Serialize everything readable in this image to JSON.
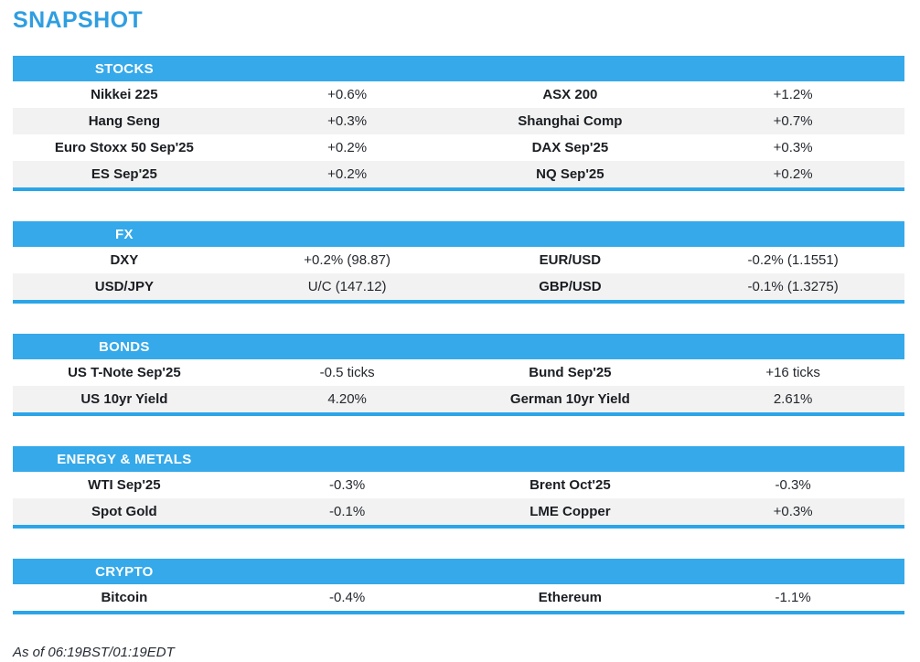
{
  "title": "SNAPSHOT",
  "footer": "As of 06:19BST/01:19EDT",
  "colors": {
    "accent_blue_title": "#2f9ee1",
    "header_bar_blue": "#35a9ea",
    "section_border_blue": "#2ba5e8",
    "row_alt_gray": "#f2f2f2",
    "text_dark": "#1d2126"
  },
  "sections": [
    {
      "label": "STOCKS",
      "rows": [
        {
          "name1": "Nikkei 225",
          "value1": "+0.6%",
          "name2": "ASX 200",
          "value2": "+1.2%"
        },
        {
          "name1": "Hang Seng",
          "value1": "+0.3%",
          "name2": "Shanghai Comp",
          "value2": "+0.7%"
        },
        {
          "name1": "Euro Stoxx 50 Sep'25",
          "value1": "+0.2%",
          "name2": "DAX Sep'25",
          "value2": "+0.3%"
        },
        {
          "name1": "ES Sep'25",
          "value1": "+0.2%",
          "name2": "NQ Sep'25",
          "value2": "+0.2%"
        }
      ]
    },
    {
      "label": "FX",
      "rows": [
        {
          "name1": "DXY",
          "value1": "+0.2% (98.87)",
          "name2": "EUR/USD",
          "value2": "-0.2% (1.1551)"
        },
        {
          "name1": "USD/JPY",
          "value1": "U/C (147.12)",
          "name2": "GBP/USD",
          "value2": "-0.1% (1.3275)"
        }
      ]
    },
    {
      "label": "BONDS",
      "rows": [
        {
          "name1": "US T-Note Sep'25",
          "value1": "-0.5 ticks",
          "name2": "Bund Sep'25",
          "value2": "+16 ticks"
        },
        {
          "name1": "US 10yr Yield",
          "value1": "4.20%",
          "name2": "German 10yr Yield",
          "value2": "2.61%"
        }
      ]
    },
    {
      "label": "ENERGY & METALS",
      "rows": [
        {
          "name1": "WTI Sep'25",
          "value1": "-0.3%",
          "name2": "Brent Oct'25",
          "value2": "-0.3%"
        },
        {
          "name1": "Spot Gold",
          "value1": "-0.1%",
          "name2": "LME Copper",
          "value2": "+0.3%"
        }
      ]
    },
    {
      "label": "CRYPTO",
      "rows": [
        {
          "name1": "Bitcoin",
          "value1": "-0.4%",
          "name2": "Ethereum",
          "value2": "-1.1%"
        }
      ]
    }
  ]
}
